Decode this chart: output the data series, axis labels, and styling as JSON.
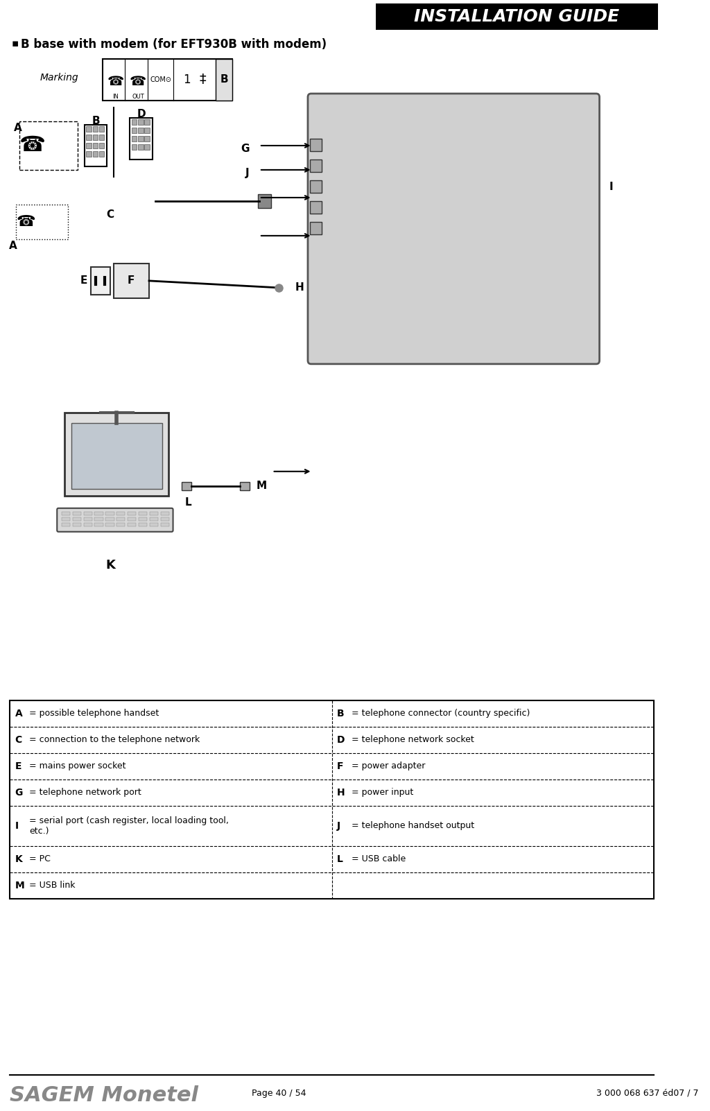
{
  "title_text": "INSTALLATION GUIDE",
  "title_bg": "#000000",
  "title_fg": "#ffffff",
  "bullet_text": "B base with modem (for EFT930B with modem)",
  "marking_label": "Marking",
  "page_text": "Page 40 / 54",
  "doc_ref": "3 000 068 637 éd07 / 7",
  "sagem_text": "SAGEM Monetel",
  "legend_rows": [
    [
      "A",
      "= possible telephone handset",
      "B",
      "= telephone connector (country specific)"
    ],
    [
      "C",
      "= connection to the telephone network",
      "D",
      "= telephone network socket"
    ],
    [
      "E",
      "= mains power socket",
      "F",
      "= power adapter"
    ],
    [
      "G",
      "= telephone network port",
      "H",
      "= power input"
    ],
    [
      "I",
      "= serial port (cash register, local loading tool,\netc.)",
      "J",
      "= telephone handset output"
    ],
    [
      "K",
      "= PC",
      "L",
      "= USB cable"
    ],
    [
      "M",
      "= USB link",
      "",
      ""
    ]
  ],
  "bg_color": "#ffffff",
  "text_color": "#000000",
  "border_color": "#000000"
}
